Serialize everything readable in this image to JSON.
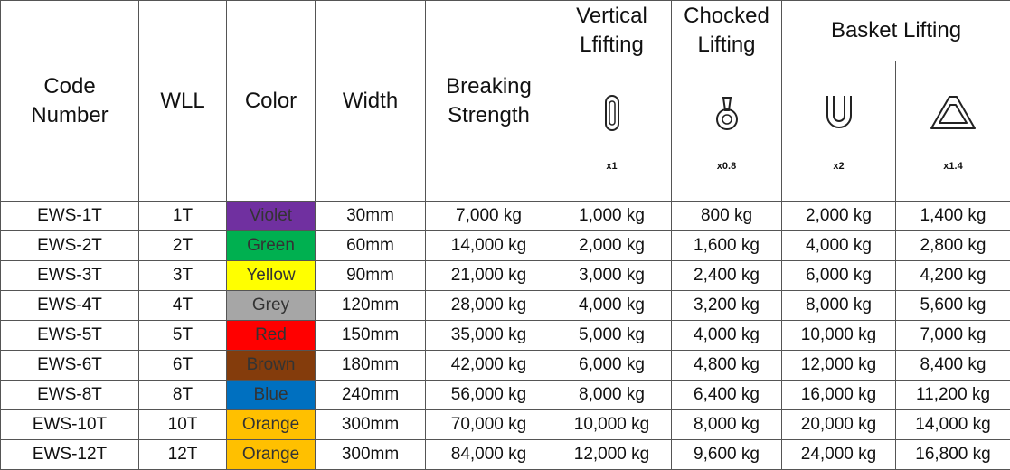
{
  "table": {
    "header": {
      "code_number": "Code\nNumber",
      "wll": "WLL",
      "color": "Color",
      "width": "Width",
      "breaking_strength": "Breaking\nStrength",
      "vertical": "Vertical\nLfifting",
      "chocked": "Chocked\nLifting",
      "basket": "Basket Lifting",
      "factors": [
        "x1",
        "x0.8",
        "x2",
        "x1.4"
      ]
    },
    "rows": [
      [
        "EWS-1T",
        "1T",
        "Violet",
        "30mm",
        "7,000 kg",
        "1,000 kg",
        "800 kg",
        "2,000 kg",
        "1,400 kg"
      ],
      [
        "EWS-2T",
        "2T",
        "Green",
        "60mm",
        "14,000 kg",
        "2,000 kg",
        "1,600 kg",
        "4,000 kg",
        "2,800 kg"
      ],
      [
        "EWS-3T",
        "3T",
        "Yellow",
        "90mm",
        "21,000 kg",
        "3,000 kg",
        "2,400 kg",
        "6,000 kg",
        "4,200 kg"
      ],
      [
        "EWS-4T",
        "4T",
        "Grey",
        "120mm",
        "28,000 kg",
        "4,000 kg",
        "3,200 kg",
        "8,000 kg",
        "5,600 kg"
      ],
      [
        "EWS-5T",
        "5T",
        "Red",
        "150mm",
        "35,000 kg",
        "5,000 kg",
        "4,000 kg",
        "10,000 kg",
        "7,000 kg"
      ],
      [
        "EWS-6T",
        "6T",
        "Brown",
        "180mm",
        "42,000 kg",
        "6,000 kg",
        "4,800 kg",
        "12,000 kg",
        "8,400 kg"
      ],
      [
        "EWS-8T",
        "8T",
        "Blue",
        "240mm",
        "56,000 kg",
        "8,000 kg",
        "6,400 kg",
        "16,000 kg",
        "11,200 kg"
      ],
      [
        "EWS-10T",
        "10T",
        "Orange",
        "300mm",
        "70,000 kg",
        "10,000 kg",
        "8,000 kg",
        "20,000 kg",
        "14,000 kg"
      ],
      [
        "EWS-12T",
        "12T",
        "Orange",
        "300mm",
        "84,000 kg",
        "12,000 kg",
        "9,600 kg",
        "24,000 kg",
        "16,800 kg"
      ]
    ],
    "row_colors": [
      "#7030a0",
      "#00b050",
      "#ffff00",
      "#a6a6a6",
      "#ff0000",
      "#843c0c",
      "#0070c0",
      "#ffc000",
      "#ffc000"
    ]
  }
}
